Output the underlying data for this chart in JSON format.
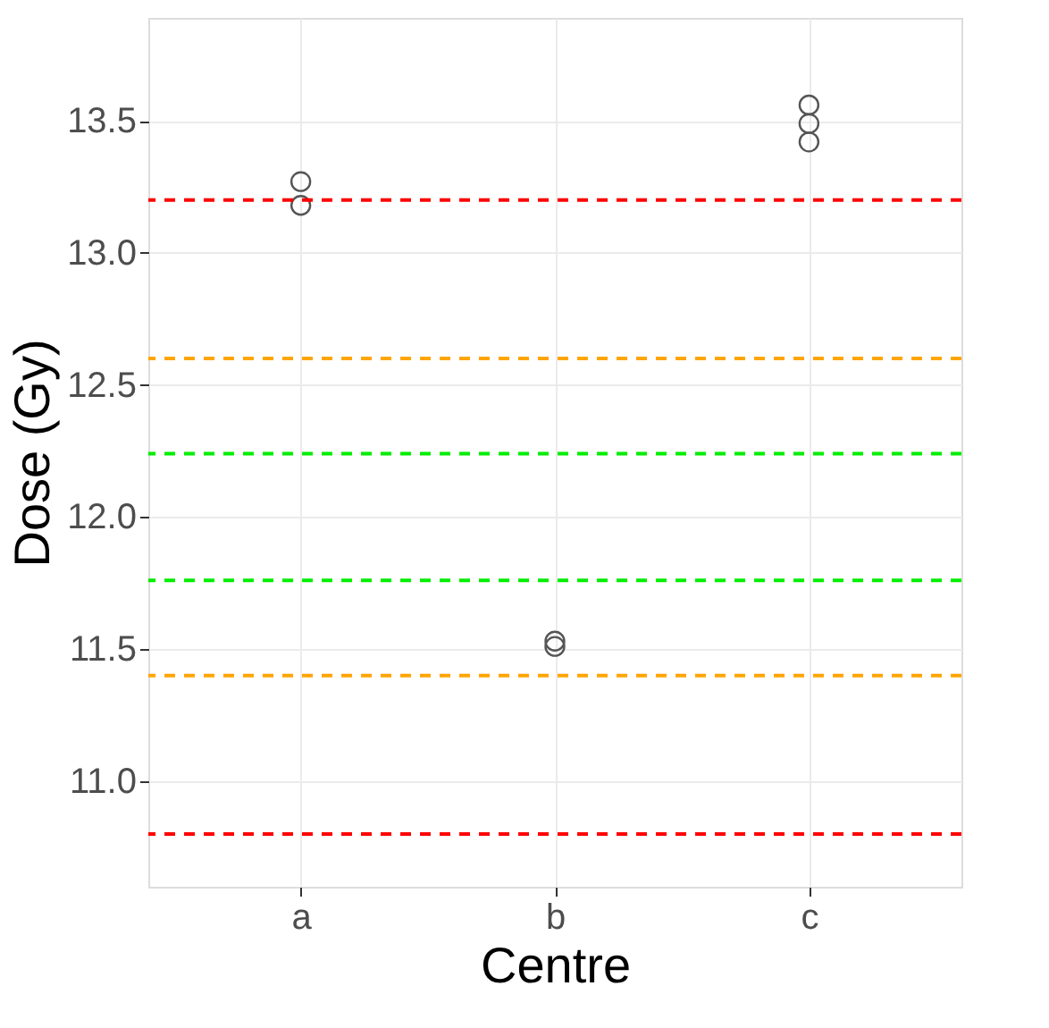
{
  "chart_data": {
    "type": "scatter",
    "xlabel": "Centre",
    "ylabel": "Dose (Gy)",
    "categories": [
      "a",
      "b",
      "c"
    ],
    "series": [
      {
        "color": "#555555",
        "x": [
          "a",
          "a",
          "b",
          "b",
          "c",
          "c",
          "c"
        ],
        "values": [
          13.27,
          13.18,
          11.53,
          11.51,
          13.56,
          13.49,
          13.42
        ]
      }
    ],
    "marker": "circle",
    "ylim": [
      10.6,
      13.89
    ],
    "yticks": [
      {
        "value": 11,
        "label": "11.0"
      },
      11.5,
      {
        "value": 12,
        "label": "12.0"
      },
      12.5,
      {
        "value": 13,
        "label": "13.0"
      },
      13.5
    ],
    "ref_lines": [
      {
        "axis": "y",
        "value": 13.2,
        "color": "#ff0000",
        "line_style": "dashed"
      },
      {
        "axis": "y",
        "value": 12.6,
        "color": "#ffa500",
        "line_style": "dashed"
      },
      {
        "axis": "y",
        "value": 12.24,
        "color": "#00ee00",
        "line_style": "dashed"
      },
      {
        "axis": "y",
        "value": 11.76,
        "color": "#00ee00",
        "line_style": "dashed"
      },
      {
        "axis": "y",
        "value": 11.4,
        "color": "#ffa500",
        "line_style": "dashed"
      },
      {
        "axis": "y",
        "value": 10.8,
        "color": "#ff0000",
        "line_style": "dashed"
      }
    ],
    "grid": true
  }
}
